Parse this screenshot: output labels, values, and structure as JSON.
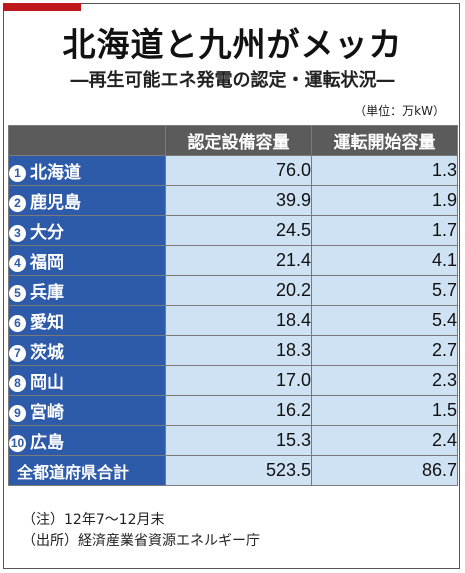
{
  "header": {
    "title": "北海道と九州がメッカ",
    "subtitle": "―再生可能エネ発電の認定・運転状況―",
    "unit": "（単位：万kW）"
  },
  "chart_data": {
    "type": "table",
    "columns": [
      "",
      "認定設備容量",
      "運転開始容量"
    ],
    "rows": [
      {
        "rank": "1",
        "name": "北海道",
        "certified": "76.0",
        "operating": "1.3"
      },
      {
        "rank": "2",
        "name": "鹿児島",
        "certified": "39.9",
        "operating": "1.9"
      },
      {
        "rank": "3",
        "name": "大分",
        "certified": "24.5",
        "operating": "1.7"
      },
      {
        "rank": "4",
        "name": "福岡",
        "certified": "21.4",
        "operating": "4.1"
      },
      {
        "rank": "5",
        "name": "兵庫",
        "certified": "20.2",
        "operating": "5.7"
      },
      {
        "rank": "6",
        "name": "愛知",
        "certified": "18.4",
        "operating": "5.4"
      },
      {
        "rank": "7",
        "name": "茨城",
        "certified": "18.3",
        "operating": "2.7"
      },
      {
        "rank": "8",
        "name": "岡山",
        "certified": "17.0",
        "operating": "2.3"
      },
      {
        "rank": "9",
        "name": "宮崎",
        "certified": "16.2",
        "operating": "1.5"
      },
      {
        "rank": "10",
        "name": "広島",
        "certified": "15.3",
        "operating": "2.4"
      }
    ],
    "total": {
      "name": "全都道府県合計",
      "certified": "523.5",
      "operating": "86.7"
    }
  },
  "notes": [
    "（注）12年7～12月末",
    "（出所）経済産業省資源エネルギー庁"
  ],
  "colors": {
    "accent": "#c0171d",
    "header_bg": "#5b5b5b",
    "name_bg": "#2d5aa9",
    "value_bg": "#cfe2f3"
  }
}
